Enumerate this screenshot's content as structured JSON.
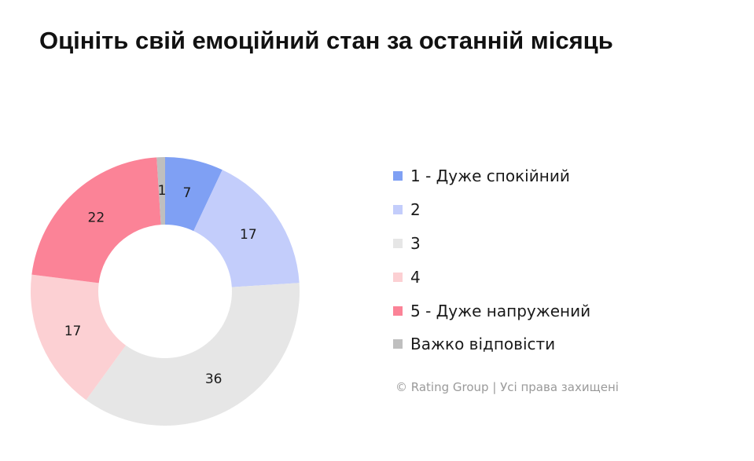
{
  "title": "Оцініть свій емоційний стан за останній місяць",
  "footer": "© Rating Group | Усі права захищені",
  "chart_data": {
    "type": "pie",
    "variant": "donut",
    "categories": [
      "1 - Дуже спокійний",
      "2",
      "3",
      "4",
      "5 - Дуже напружений",
      "Важко відповісти"
    ],
    "values": [
      7,
      17,
      36,
      17,
      22,
      1
    ],
    "colors": [
      "#7fa0f4",
      "#c3cdfb",
      "#e6e6e6",
      "#fcd0d3",
      "#fb8397",
      "#bfbfbf"
    ],
    "legend_position": "right"
  }
}
